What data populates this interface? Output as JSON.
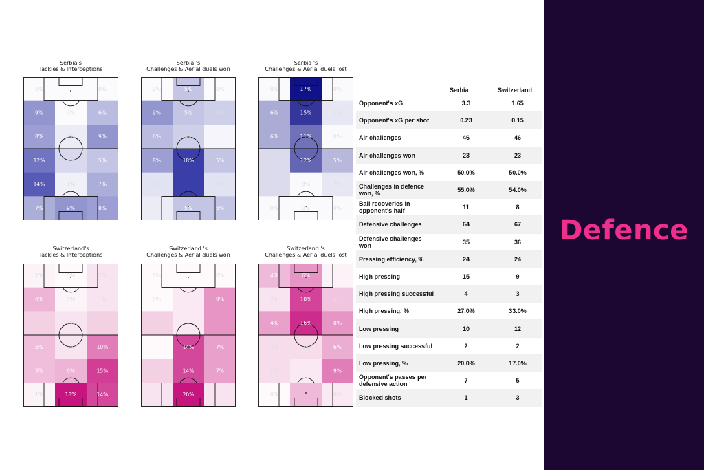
{
  "panel": {
    "title": "Defence"
  },
  "pitches": [
    {
      "title_line1": "Serbia's",
      "title_line2": "Tackles & Interceptions",
      "base": "#3a3ea8",
      "cells": [
        [
          0,
          0,
          0.02,
          "0%"
        ],
        [
          0,
          1,
          0.0,
          ""
        ],
        [
          0,
          2,
          0.02,
          "0%"
        ],
        [
          1,
          0,
          0.55,
          "9%"
        ],
        [
          1,
          1,
          0.02,
          "0%"
        ],
        [
          1,
          2,
          0.35,
          "6%"
        ],
        [
          2,
          0,
          0.5,
          "8%"
        ],
        [
          2,
          1,
          0.1,
          "2%"
        ],
        [
          2,
          2,
          0.55,
          "9%"
        ],
        [
          3,
          0,
          0.72,
          "12%"
        ],
        [
          3,
          1,
          0.2,
          "3%"
        ],
        [
          3,
          2,
          0.3,
          "5%"
        ],
        [
          4,
          0,
          0.85,
          "14%"
        ],
        [
          4,
          1,
          0.08,
          "1%"
        ],
        [
          4,
          2,
          0.42,
          "7%"
        ],
        [
          5,
          0,
          0.42,
          "7%"
        ],
        [
          5,
          1,
          0.55,
          "9%"
        ],
        [
          5,
          2,
          0.5,
          "8%"
        ]
      ]
    },
    {
      "title_line1": "Serbia 's",
      "title_line2": "Challenges & Aerial duels won",
      "base": "#3a3ea8",
      "cells": [
        [
          0,
          0,
          0.02,
          "0%"
        ],
        [
          0,
          1,
          0.3,
          "5%"
        ],
        [
          0,
          2,
          0.02,
          "0%"
        ],
        [
          1,
          0,
          0.55,
          "9%"
        ],
        [
          1,
          1,
          0.3,
          "5%"
        ],
        [
          1,
          2,
          0.25,
          "4%"
        ],
        [
          2,
          0,
          0.35,
          "6%"
        ],
        [
          2,
          1,
          0.25,
          "4%"
        ],
        [
          2,
          2,
          0.05,
          ""
        ],
        [
          3,
          0,
          0.5,
          "8%"
        ],
        [
          3,
          1,
          1.0,
          "18%"
        ],
        [
          3,
          2,
          0.3,
          "5%"
        ],
        [
          4,
          0,
          0.15,
          "2%"
        ],
        [
          4,
          1,
          1.0,
          ""
        ],
        [
          4,
          2,
          0.15,
          "2%"
        ],
        [
          5,
          0,
          0.1,
          ""
        ],
        [
          5,
          1,
          0.3,
          "5%"
        ],
        [
          5,
          2,
          0.3,
          "5%"
        ]
      ]
    },
    {
      "title_line1": "Serbia 's",
      "title_line2": "Challenges & Aerial duels lost",
      "base": "#10128a",
      "cells": [
        [
          0,
          0,
          0.02,
          "0%"
        ],
        [
          0,
          1,
          1.0,
          "17%"
        ],
        [
          0,
          2,
          0.02,
          "0%"
        ],
        [
          1,
          0,
          0.35,
          "6%"
        ],
        [
          1,
          1,
          0.85,
          "15%"
        ],
        [
          1,
          2,
          0.1,
          "2%"
        ],
        [
          2,
          0,
          0.35,
          "6%"
        ],
        [
          2,
          1,
          0.6,
          "11%"
        ],
        [
          2,
          2,
          0.02,
          "0%"
        ],
        [
          3,
          0,
          0.15,
          "2%"
        ],
        [
          3,
          1,
          0.65,
          "12%"
        ],
        [
          3,
          2,
          0.3,
          "5%"
        ],
        [
          4,
          0,
          0.15,
          "2%"
        ],
        [
          4,
          1,
          0.02,
          "0%"
        ],
        [
          4,
          2,
          0.1,
          "2%"
        ],
        [
          5,
          0,
          0.02,
          "0%"
        ],
        [
          5,
          1,
          0.02,
          "0%"
        ],
        [
          5,
          2,
          0.02,
          "0%"
        ]
      ]
    },
    {
      "title_line1": "Switzerland's",
      "title_line2": "Tackles & Interceptions",
      "base": "#c8147f",
      "cells": [
        [
          0,
          0,
          0.05,
          "1%"
        ],
        [
          0,
          1,
          0.02,
          "0%"
        ],
        [
          0,
          2,
          0.12,
          "2%"
        ],
        [
          1,
          0,
          0.32,
          "6%"
        ],
        [
          1,
          1,
          0.05,
          "0%"
        ],
        [
          1,
          2,
          0.12,
          "1%"
        ],
        [
          2,
          0,
          0.2,
          "4%"
        ],
        [
          2,
          1,
          0.12,
          "2%"
        ],
        [
          2,
          2,
          0.2,
          "3%"
        ],
        [
          3,
          0,
          0.28,
          "5%"
        ],
        [
          3,
          1,
          0.12,
          "2%"
        ],
        [
          3,
          2,
          0.55,
          "10%"
        ],
        [
          4,
          0,
          0.28,
          "5%"
        ],
        [
          4,
          1,
          0.32,
          "6%"
        ],
        [
          4,
          2,
          0.82,
          "15%"
        ],
        [
          5,
          0,
          0.05,
          "1%"
        ],
        [
          5,
          1,
          1.0,
          "18%"
        ],
        [
          5,
          2,
          0.78,
          "14%"
        ]
      ]
    },
    {
      "title_line1": "Switzerland 's",
      "title_line2": "Challenges & Aerial duels won",
      "base": "#c8147f",
      "cells": [
        [
          0,
          0,
          0.02,
          "0%"
        ],
        [
          0,
          1,
          0.02,
          ""
        ],
        [
          0,
          2,
          0.02,
          "0%"
        ],
        [
          1,
          0,
          0.02,
          "0%"
        ],
        [
          1,
          1,
          0.1,
          ""
        ],
        [
          1,
          2,
          0.45,
          "9%"
        ],
        [
          2,
          0,
          0.2,
          "4%"
        ],
        [
          2,
          1,
          0.1,
          ""
        ],
        [
          2,
          2,
          0.45,
          ""
        ],
        [
          3,
          0,
          0.02,
          ""
        ],
        [
          3,
          1,
          0.78,
          "14%"
        ],
        [
          3,
          2,
          0.4,
          "7%"
        ],
        [
          4,
          0,
          0.2,
          "5%"
        ],
        [
          4,
          1,
          0.78,
          "14%"
        ],
        [
          4,
          2,
          0.4,
          "7%"
        ],
        [
          5,
          0,
          0.12,
          ""
        ],
        [
          5,
          1,
          1.0,
          "20%"
        ],
        [
          5,
          2,
          0.12,
          ""
        ]
      ]
    },
    {
      "title_line1": "Switzerland 's",
      "title_line2": "Challenges & Aerial duels lost",
      "base": "#c8147f",
      "cells": [
        [
          0,
          0,
          0.3,
          "4%"
        ],
        [
          0,
          1,
          0.45,
          "6%"
        ],
        [
          0,
          2,
          0.05,
          ""
        ],
        [
          1,
          0,
          0.12,
          "2%"
        ],
        [
          1,
          1,
          0.8,
          "10%"
        ],
        [
          1,
          2,
          0.25,
          "4%"
        ],
        [
          2,
          0,
          0.4,
          "4%"
        ],
        [
          2,
          1,
          0.9,
          "16%"
        ],
        [
          2,
          2,
          0.45,
          "8%"
        ],
        [
          3,
          0,
          0.15,
          "2%"
        ],
        [
          3,
          1,
          0.15,
          "2%"
        ],
        [
          3,
          2,
          0.35,
          "6%"
        ],
        [
          4,
          0,
          0.15,
          "2%"
        ],
        [
          4,
          1,
          0.1,
          ""
        ],
        [
          4,
          2,
          0.55,
          "9%"
        ],
        [
          5,
          0,
          0.02,
          "0%"
        ],
        [
          5,
          1,
          0.3,
          ""
        ],
        [
          5,
          2,
          0.1,
          "0%"
        ]
      ]
    }
  ],
  "table": {
    "header": {
      "team1": "Serbia",
      "team2": "Switzerland"
    },
    "rows": [
      {
        "label": "Opponent's xG",
        "v1": "3.3",
        "v2": "1.65"
      },
      {
        "label": "Opponent's xG per shot",
        "v1": "0.23",
        "v2": "0.15"
      },
      {
        "label": "Air challenges",
        "v1": "46",
        "v2": "46"
      },
      {
        "label": "Air challenges won",
        "v1": "23",
        "v2": "23"
      },
      {
        "label": "Air challenges won, %",
        "v1": "50.0%",
        "v2": "50.0%"
      },
      {
        "label": "Challenges in defence won, %",
        "v1": "55.0%",
        "v2": "54.0%"
      },
      {
        "label": "Ball recoveries in opponent's half",
        "v1": "11",
        "v2": "8"
      },
      {
        "label": "Defensive challenges",
        "v1": "64",
        "v2": "67"
      },
      {
        "label": "Defensive challenges won",
        "v1": "35",
        "v2": "36"
      },
      {
        "label": "Pressing efficiency, %",
        "v1": "24",
        "v2": "24"
      },
      {
        "label": "High pressing",
        "v1": "15",
        "v2": "9"
      },
      {
        "label": "High pressing successful",
        "v1": "4",
        "v2": "3"
      },
      {
        "label": "High pressing, %",
        "v1": "27.0%",
        "v2": "33.0%"
      },
      {
        "label": "Low pressing",
        "v1": "10",
        "v2": "12"
      },
      {
        "label": "Low pressing successful",
        "v1": "2",
        "v2": "2"
      },
      {
        "label": "Low pressing, %",
        "v1": "20.0%",
        "v2": "17.0%"
      },
      {
        "label": "Opponent's passes per defensive action",
        "v1": "7",
        "v2": "5"
      },
      {
        "label": "Blocked shots",
        "v1": "1",
        "v2": "3"
      }
    ]
  }
}
